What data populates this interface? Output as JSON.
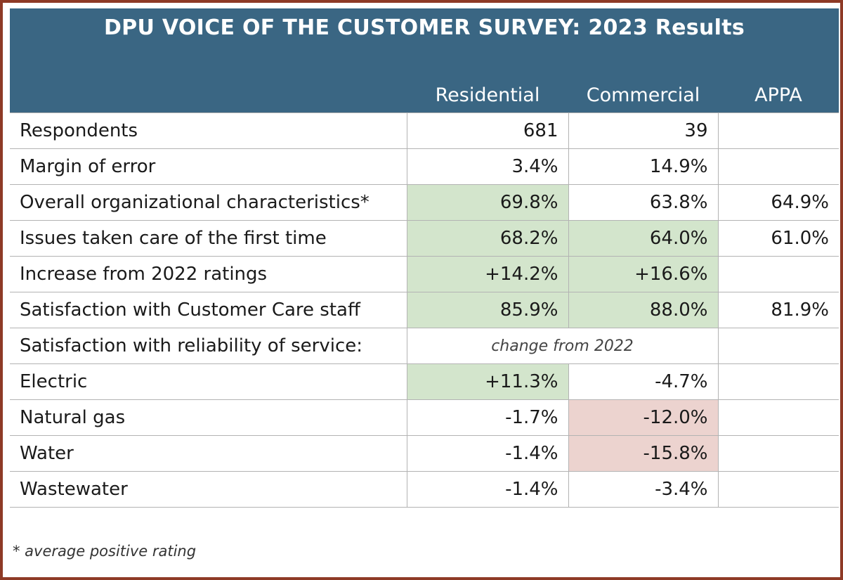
{
  "title": "DPU VOICE OF THE CUSTOMER SURVEY: 2023 Results",
  "columns": {
    "residential": "Residential",
    "commercial": "Commercial",
    "appa": "APPA"
  },
  "rows": [
    {
      "label": "Respondents",
      "residential": "681",
      "commercial": "39",
      "appa": ""
    },
    {
      "label": "Margin of error",
      "residential": "3.4%",
      "commercial": "14.9%",
      "appa": ""
    },
    {
      "label": "Overall organizational characteristics*",
      "residential": "69.8%",
      "commercial": "63.8%",
      "appa": "64.9%"
    },
    {
      "label": "Issues taken care of the first time",
      "residential": "68.2%",
      "commercial": "64.0%",
      "appa": "61.0%"
    },
    {
      "label": "Increase from 2022 ratings",
      "residential": "+14.2%",
      "commercial": "+16.6%",
      "appa": ""
    },
    {
      "label": "Satisfaction with Customer Care staff",
      "residential": "85.9%",
      "commercial": "88.0%",
      "appa": "81.9%"
    },
    {
      "label": "Satisfaction with reliability of service:",
      "note": "change from 2022",
      "appa": ""
    },
    {
      "label": "Electric",
      "residential": "+11.3%",
      "commercial": "-4.7%",
      "appa": ""
    },
    {
      "label": "Natural gas",
      "residential": "-1.7%",
      "commercial": "-12.0%",
      "appa": ""
    },
    {
      "label": "Water",
      "residential": "-1.4%",
      "commercial": "-15.8%",
      "appa": ""
    },
    {
      "label": "Wastewater",
      "residential": "-1.4%",
      "commercial": "-3.4%",
      "appa": ""
    }
  ],
  "footnote": "* average positive rating",
  "colors": {
    "header_bg": "#3a6683",
    "border": "#8e3a26",
    "positive": "#d3e5cc",
    "negative": "#ecd3cf"
  }
}
